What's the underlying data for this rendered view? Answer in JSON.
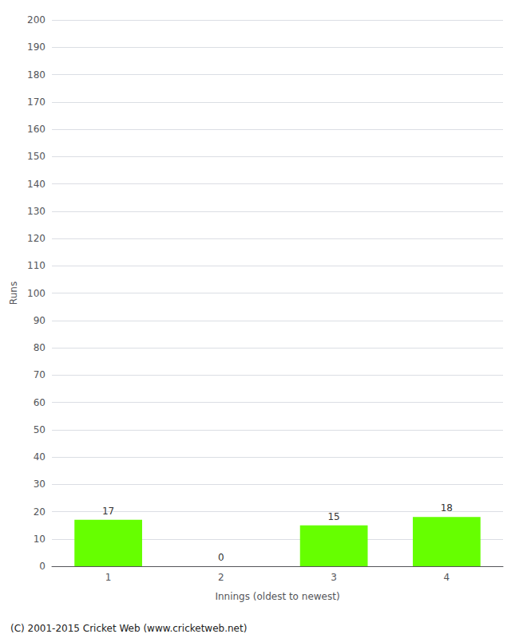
{
  "chart_data": {
    "type": "bar",
    "xlabel": "Innings (oldest to newest)",
    "ylabel": "Runs",
    "categories": [
      "1",
      "2",
      "3",
      "4"
    ],
    "values": [
      17,
      0,
      15,
      18
    ],
    "color": "#66ff00",
    "ylim": [
      0,
      200
    ],
    "yticks": [
      0,
      10,
      20,
      30,
      40,
      50,
      60,
      70,
      80,
      90,
      100,
      110,
      120,
      130,
      140,
      150,
      160,
      170,
      180,
      190,
      200
    ],
    "grid": true,
    "data_labels": true,
    "annotations": [
      "(C) 2001-2015 Cricket Web (www.cricketweb.net)"
    ]
  }
}
